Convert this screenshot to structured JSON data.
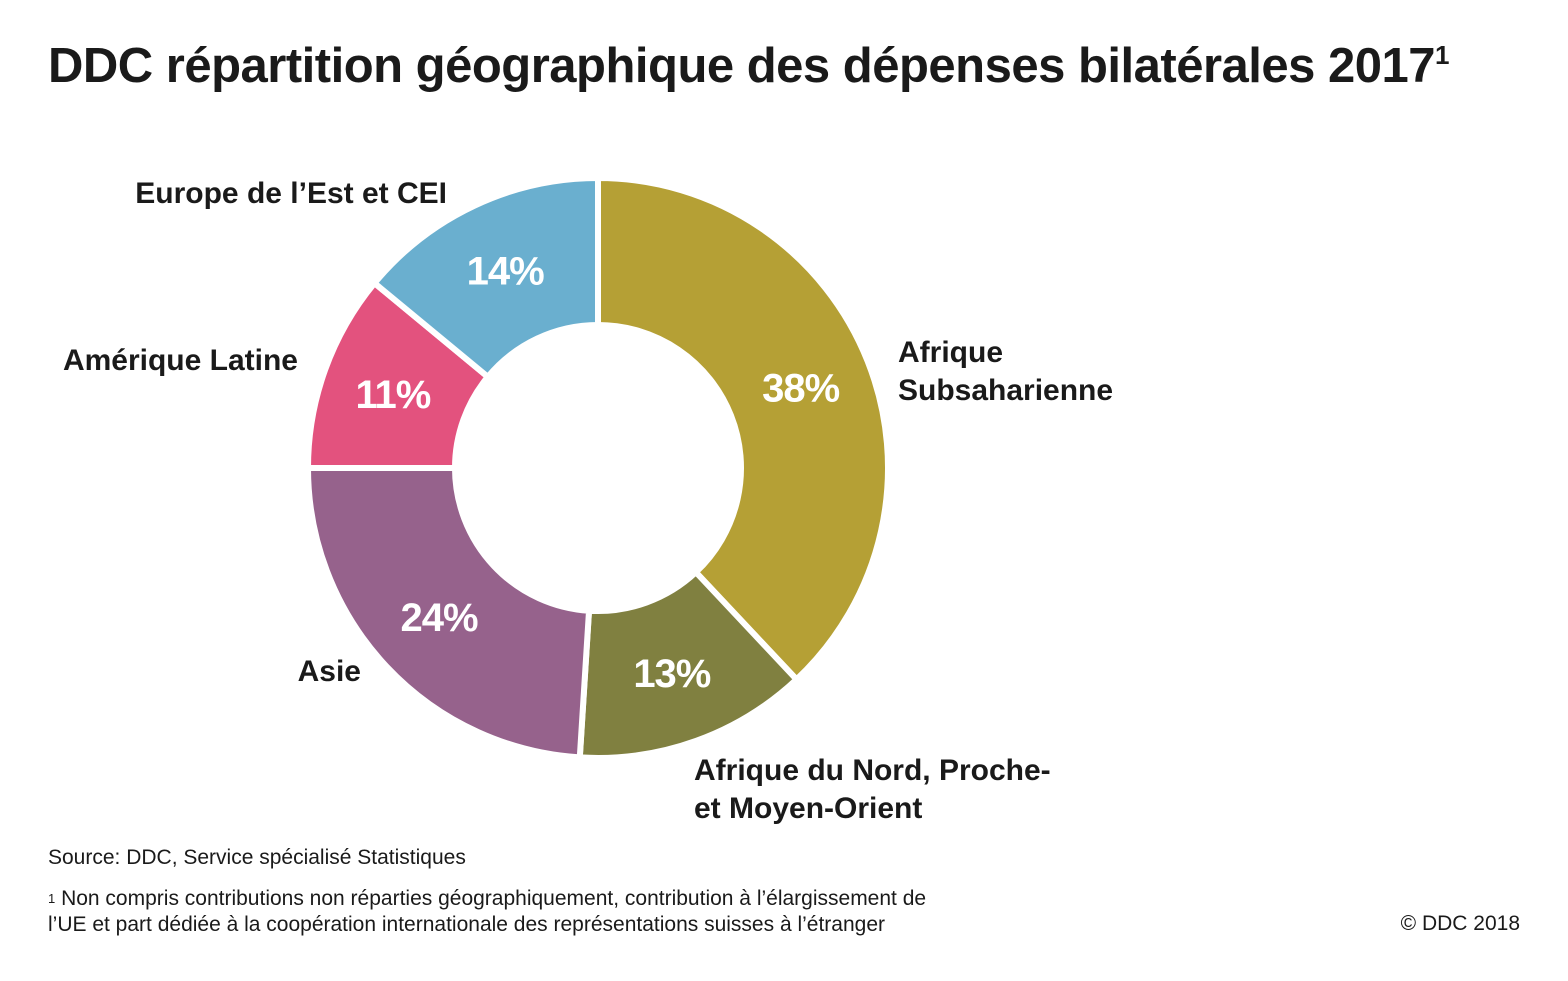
{
  "title": "DDC répartition géographique des dépenses bilatérales 2017",
  "title_footnote_mark": "1",
  "chart_data": {
    "type": "pie",
    "donut": true,
    "categories": [
      "Afrique Subsaharienne",
      "Afrique du Nord, Proche- et Moyen-Orient",
      "Asie",
      "Amérique Latine",
      "Europe de l’Est et CEI"
    ],
    "values": [
      38,
      13,
      24,
      11,
      14
    ],
    "value_labels": [
      "38%",
      "13%",
      "24%",
      "11%",
      "14%"
    ],
    "label_lines": [
      [
        "Afrique",
        "Subsaharienne"
      ],
      [
        "Afrique du Nord, Proche-",
        "et Moyen-Orient"
      ],
      [
        "Asie"
      ],
      [
        "Amérique Latine"
      ],
      [
        "Europe de l’Est et CEI"
      ]
    ],
    "colors": [
      "#b5a035",
      "#808040",
      "#96628c",
      "#e3527e",
      "#6aafcf"
    ],
    "unit": "%"
  },
  "source": "Source: DDC, Service spécialisé Statistiques",
  "footnote_mark": "1",
  "footnote_lines": [
    "Non compris contributions non réparties géographiquement, contribution à l’élargissement de",
    "l’UE et part dédiée à la coopération internationale des représentations suisses à l’étranger"
  ],
  "copyright": "© DDC 2018"
}
